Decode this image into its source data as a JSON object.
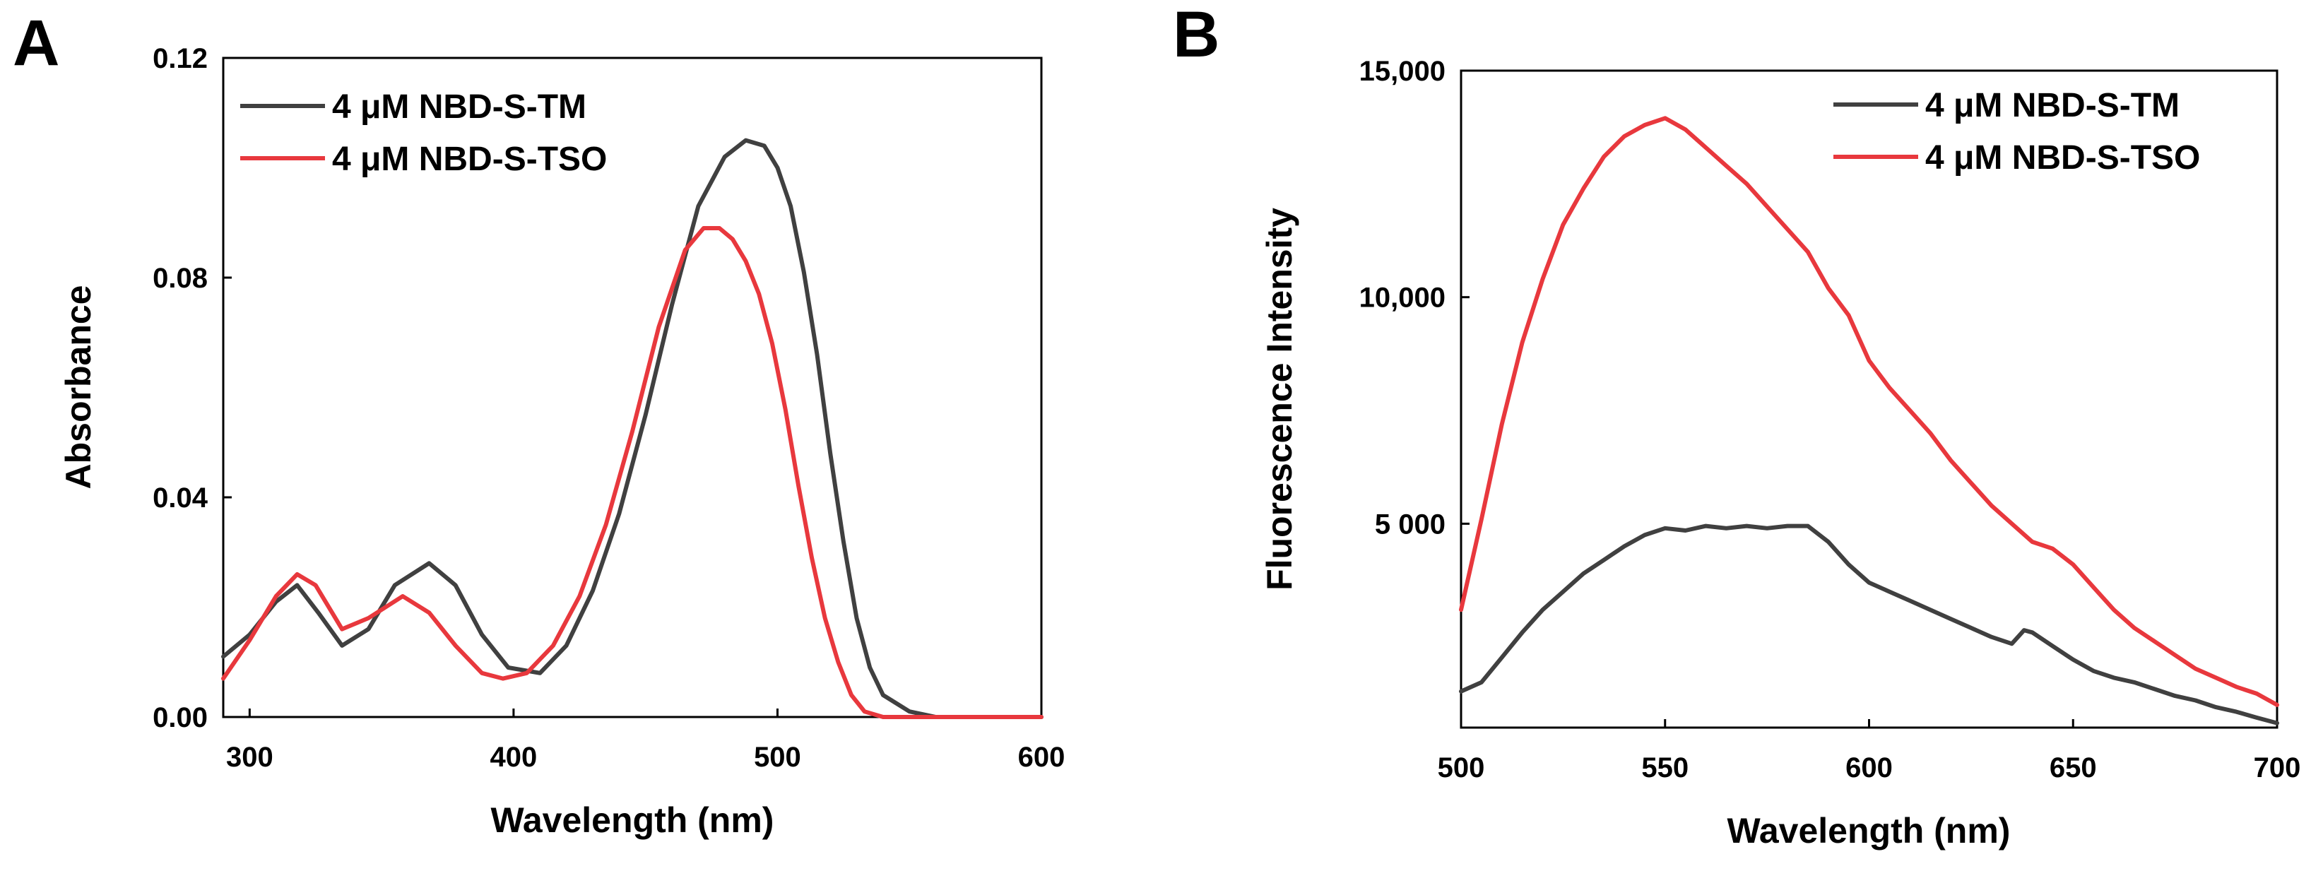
{
  "colors": {
    "tm": "#404040",
    "tso": "#e8383d"
  },
  "chart_data": [
    {
      "panel": "A",
      "type": "line",
      "xlabel": "Wavelength (nm)",
      "ylabel": "Absorbance",
      "xlim": [
        290,
        600
      ],
      "ylim": [
        0,
        0.12
      ],
      "xticks": [
        300,
        400,
        500,
        600
      ],
      "xtick_labels": [
        "300",
        "400",
        "500",
        "600"
      ],
      "yticks": [
        0,
        0.04,
        0.08,
        0.12
      ],
      "ytick_labels": [
        "0.00",
        "0.04",
        "0.08",
        "0.12"
      ],
      "grid": false,
      "legend_position": "top-left",
      "series": [
        {
          "name": "4 μM NBD-S-TM",
          "color": "#404040",
          "x": [
            290,
            300,
            310,
            318,
            326,
            335,
            345,
            355,
            368,
            378,
            388,
            398,
            410,
            420,
            430,
            440,
            450,
            460,
            470,
            480,
            488,
            495,
            500,
            505,
            510,
            515,
            520,
            525,
            530,
            535,
            540,
            550,
            560,
            580,
            600
          ],
          "y": [
            0.011,
            0.015,
            0.021,
            0.024,
            0.019,
            0.013,
            0.016,
            0.024,
            0.028,
            0.024,
            0.015,
            0.009,
            0.008,
            0.013,
            0.023,
            0.037,
            0.055,
            0.075,
            0.093,
            0.102,
            0.105,
            0.104,
            0.1,
            0.093,
            0.081,
            0.066,
            0.048,
            0.032,
            0.018,
            0.009,
            0.004,
            0.001,
            0.0,
            0.0,
            0.0
          ]
        },
        {
          "name": "4 μM NBD-S-TSO",
          "color": "#e8383d",
          "x": [
            290,
            300,
            310,
            318,
            325,
            335,
            345,
            358,
            368,
            378,
            388,
            396,
            405,
            415,
            425,
            435,
            445,
            455,
            465,
            472,
            478,
            483,
            488,
            493,
            498,
            503,
            508,
            513,
            518,
            523,
            528,
            533,
            540,
            550,
            560,
            580,
            600
          ],
          "y": [
            0.007,
            0.014,
            0.022,
            0.026,
            0.024,
            0.016,
            0.018,
            0.022,
            0.019,
            0.013,
            0.008,
            0.007,
            0.008,
            0.013,
            0.022,
            0.035,
            0.052,
            0.071,
            0.085,
            0.089,
            0.089,
            0.087,
            0.083,
            0.077,
            0.068,
            0.056,
            0.042,
            0.029,
            0.018,
            0.01,
            0.004,
            0.001,
            0.0,
            0.0,
            0.0,
            0.0,
            0.0
          ]
        }
      ]
    },
    {
      "panel": "B",
      "type": "line",
      "xlabel": "Wavelength (nm)",
      "ylabel": "Fluorescence Intensity",
      "xlim": [
        500,
        700
      ],
      "ylim": [
        500,
        15000
      ],
      "xticks": [
        500,
        550,
        600,
        650,
        700
      ],
      "xtick_labels": [
        "500",
        "550",
        "600",
        "650",
        "700"
      ],
      "yticks": [
        5000,
        10000,
        15000
      ],
      "ytick_labels": [
        "5 000",
        "10,000",
        "15,000"
      ],
      "grid": false,
      "legend_position": "top-right",
      "series": [
        {
          "name": "4 μM NBD-S-TM",
          "color": "#404040",
          "x": [
            500,
            505,
            510,
            515,
            520,
            525,
            530,
            535,
            540,
            545,
            550,
            555,
            560,
            565,
            570,
            575,
            580,
            585,
            590,
            595,
            600,
            605,
            610,
            615,
            620,
            625,
            630,
            635,
            638,
            640,
            645,
            650,
            655,
            660,
            665,
            670,
            675,
            680,
            685,
            690,
            695,
            700
          ],
          "y": [
            1300,
            1500,
            2050,
            2600,
            3100,
            3500,
            3900,
            4200,
            4500,
            4750,
            4900,
            4850,
            4950,
            4900,
            4950,
            4900,
            4950,
            4950,
            4600,
            4100,
            3700,
            3500,
            3300,
            3100,
            2900,
            2700,
            2500,
            2350,
            2650,
            2600,
            2300,
            2000,
            1750,
            1600,
            1500,
            1350,
            1200,
            1100,
            950,
            850,
            720,
            600
          ]
        },
        {
          "name": "4 μM NBD-S-TSO",
          "color": "#e8383d",
          "x": [
            500,
            505,
            510,
            515,
            520,
            525,
            530,
            535,
            540,
            545,
            550,
            555,
            560,
            565,
            570,
            575,
            580,
            585,
            590,
            595,
            600,
            605,
            610,
            615,
            620,
            625,
            630,
            635,
            640,
            645,
            650,
            655,
            660,
            665,
            670,
            675,
            680,
            685,
            690,
            695,
            700
          ],
          "y": [
            3100,
            5100,
            7200,
            9000,
            10400,
            11600,
            12400,
            13100,
            13550,
            13800,
            13950,
            13700,
            13300,
            12900,
            12500,
            12000,
            11500,
            11000,
            10200,
            9600,
            8600,
            8000,
            7500,
            7000,
            6400,
            5900,
            5400,
            5000,
            4600,
            4450,
            4100,
            3600,
            3100,
            2700,
            2400,
            2100,
            1800,
            1600,
            1400,
            1250,
            1000
          ]
        }
      ]
    }
  ]
}
